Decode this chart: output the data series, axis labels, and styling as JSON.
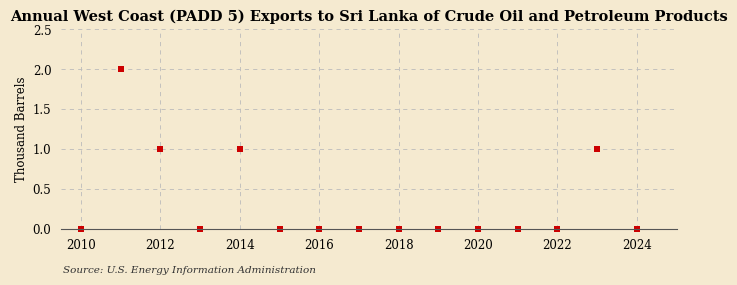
{
  "title": "Annual West Coast (PADD 5) Exports to Sri Lanka of Crude Oil and Petroleum Products",
  "ylabel": "Thousand Barrels",
  "source": "Source: U.S. Energy Information Administration",
  "background_color": "#f5ead0",
  "plot_bg_color": "#f5ead0",
  "years": [
    2010,
    2011,
    2012,
    2013,
    2014,
    2015,
    2016,
    2017,
    2018,
    2019,
    2020,
    2021,
    2022,
    2023,
    2024
  ],
  "values": [
    0.0,
    2.0,
    1.0,
    0.0,
    1.0,
    0.0,
    0.0,
    0.0,
    0.0,
    0.0,
    0.0,
    0.0,
    0.0,
    1.0,
    0.0
  ],
  "zero_years": [
    2010,
    2013,
    2015,
    2016,
    2017,
    2018,
    2019,
    2020,
    2021,
    2022,
    2024
  ],
  "nonzero_years": [
    2011,
    2012,
    2014,
    2023
  ],
  "nonzero_values": [
    2.0,
    1.0,
    1.0,
    1.0
  ],
  "marker_color": "#cc0000",
  "marker_size": 4,
  "xlim": [
    2009.5,
    2025.0
  ],
  "ylim": [
    0.0,
    2.5
  ],
  "yticks": [
    0.0,
    0.5,
    1.0,
    1.5,
    2.0,
    2.5
  ],
  "xticks": [
    2010,
    2012,
    2014,
    2016,
    2018,
    2020,
    2022,
    2024
  ],
  "grid_color": "#bbbbbb",
  "title_fontsize": 10.5,
  "axis_fontsize": 8.5,
  "source_fontsize": 7.5
}
